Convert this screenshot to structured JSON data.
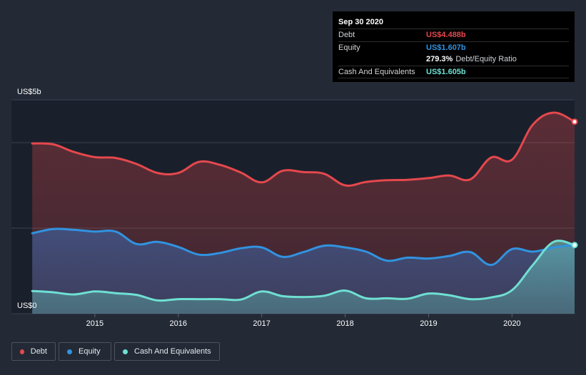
{
  "chart_data": {
    "type": "area",
    "title": "",
    "xlabel": "",
    "ylabel": "",
    "y_unit_top": "US$5b",
    "y_unit_bottom": "US$0",
    "ylim": [
      0,
      5
    ],
    "xlim": [
      2014.0,
      2020.75
    ],
    "xticks": [
      {
        "value": 2015,
        "label": "2015"
      },
      {
        "value": 2016,
        "label": "2016"
      },
      {
        "value": 2017,
        "label": "2017"
      },
      {
        "value": 2018,
        "label": "2018"
      },
      {
        "value": 2019,
        "label": "2019"
      },
      {
        "value": 2020,
        "label": "2020"
      }
    ],
    "x": [
      2014.25,
      2014.5,
      2014.75,
      2015.0,
      2015.25,
      2015.5,
      2015.75,
      2016.0,
      2016.25,
      2016.5,
      2016.75,
      2017.0,
      2017.25,
      2017.5,
      2017.75,
      2018.0,
      2018.25,
      2018.5,
      2018.75,
      2019.0,
      2019.25,
      2019.5,
      2019.75,
      2020.0,
      2020.25,
      2020.5,
      2020.75
    ],
    "series": [
      {
        "name": "Debt",
        "color": "#e5484d",
        "values": [
          3.98,
          3.96,
          3.78,
          3.66,
          3.64,
          3.5,
          3.29,
          3.29,
          3.55,
          3.48,
          3.3,
          3.07,
          3.34,
          3.31,
          3.27,
          3.0,
          3.08,
          3.12,
          3.13,
          3.17,
          3.23,
          3.14,
          3.65,
          3.6,
          4.42,
          4.7,
          4.488
        ]
      },
      {
        "name": "Equity",
        "color": "#3193e0",
        "values": [
          1.88,
          1.98,
          1.96,
          1.92,
          1.92,
          1.63,
          1.68,
          1.56,
          1.38,
          1.42,
          1.53,
          1.55,
          1.33,
          1.44,
          1.59,
          1.55,
          1.45,
          1.24,
          1.31,
          1.29,
          1.35,
          1.44,
          1.14,
          1.51,
          1.45,
          1.55,
          1.607
        ]
      },
      {
        "name": "Cash And Equivalents",
        "color": "#6fe0d2",
        "values": [
          0.53,
          0.5,
          0.45,
          0.52,
          0.48,
          0.44,
          0.31,
          0.34,
          0.34,
          0.34,
          0.33,
          0.52,
          0.41,
          0.39,
          0.42,
          0.54,
          0.36,
          0.36,
          0.35,
          0.47,
          0.43,
          0.34,
          0.38,
          0.55,
          1.14,
          1.68,
          1.605
        ]
      }
    ]
  },
  "tooltip": {
    "date": "Sep 30 2020",
    "debt_label": "Debt",
    "debt_value": "US$4.488b",
    "equity_label": "Equity",
    "equity_value": "US$1.607b",
    "ratio_value": "279.3%",
    "ratio_label": "Debt/Equity Ratio",
    "cash_label": "Cash And Equivalents",
    "cash_value": "US$1.605b"
  },
  "legend": [
    {
      "label": "Debt",
      "color": "#e5484d"
    },
    {
      "label": "Equity",
      "color": "#3193e0"
    },
    {
      "label": "Cash And Equivalents",
      "color": "#6fe0d2"
    }
  ],
  "colors": {
    "background": "#232a36",
    "plot_background": "#1a202b",
    "grid": "#3a4150",
    "debt": "#e5484d",
    "equity": "#3193e0",
    "cash": "#6fe0d2"
  }
}
